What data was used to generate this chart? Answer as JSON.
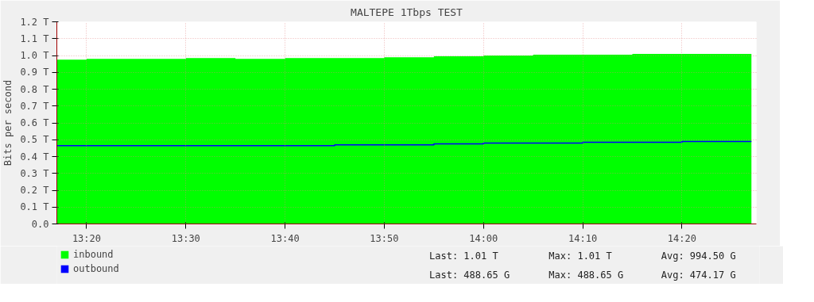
{
  "chart_data": {
    "type": "area",
    "title": "MALTEPE 1Tbps TEST",
    "ylabel": "Bits per second",
    "x": [
      13.2833,
      13.3333,
      13.4167,
      13.5,
      13.5833,
      13.6667,
      13.75,
      13.8333,
      13.9167,
      14.0,
      14.0833,
      14.1667,
      14.25,
      14.3333,
      14.45
    ],
    "series": [
      {
        "name": "inbound",
        "color": "#00ff00",
        "values": [
          0.975,
          0.98,
          0.98,
          0.985,
          0.98,
          0.985,
          0.985,
          0.99,
          0.995,
          1.0,
          1.005,
          1.005,
          1.01,
          1.01,
          1.01
        ]
      },
      {
        "name": "outbound",
        "type": "line",
        "color": "#0000ff",
        "values": [
          0.465,
          0.465,
          0.465,
          0.465,
          0.465,
          0.465,
          0.47,
          0.47,
          0.475,
          0.48,
          0.48,
          0.485,
          0.485,
          0.489,
          0.489
        ]
      }
    ],
    "xlim": [
      13.2833,
      14.4583
    ],
    "xticks": [
      {
        "value": 13.3333,
        "label": "13:20"
      },
      {
        "value": 13.5,
        "label": "13:30"
      },
      {
        "value": 13.6667,
        "label": "13:40"
      },
      {
        "value": 13.8333,
        "label": "13:50"
      },
      {
        "value": 14.0,
        "label": "14:00"
      },
      {
        "value": 14.1667,
        "label": "14:10"
      },
      {
        "value": 14.3333,
        "label": "14:20"
      }
    ],
    "ylim": [
      0,
      1.2
    ],
    "yticks": [
      {
        "value": 0,
        "label": "0.0"
      },
      {
        "value": 0.1,
        "label": "0.1 T"
      },
      {
        "value": 0.2,
        "label": "0.2 T"
      },
      {
        "value": 0.3,
        "label": "0.3 T"
      },
      {
        "value": 0.4,
        "label": "0.4 T"
      },
      {
        "value": 0.5,
        "label": "0.5 T"
      },
      {
        "value": 0.6,
        "label": "0.6 T"
      },
      {
        "value": 0.7,
        "label": "0.7 T"
      },
      {
        "value": 0.8,
        "label": "0.8 T"
      },
      {
        "value": 0.9,
        "label": "0.9 T"
      },
      {
        "value": 1.0,
        "label": "1.0 T"
      },
      {
        "value": 1.1,
        "label": "1.1 T"
      },
      {
        "value": 1.2,
        "label": "1.2 T"
      }
    ],
    "grid": true,
    "legend": "bottom left",
    "annotations": [
      "Last:   1.01 T",
      "Max:   1.01 T",
      "Avg: 994.50 G",
      "Last: 488.65 G",
      "Max: 488.65 G",
      "Avg: 474.17 G"
    ]
  }
}
